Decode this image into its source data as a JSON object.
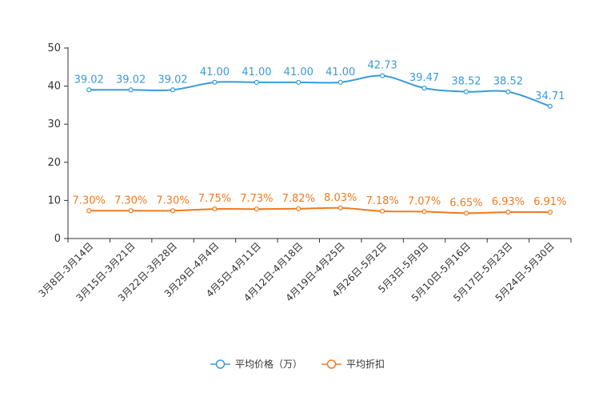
{
  "chart_data": {
    "type": "line",
    "categories": [
      "3月8日-3月14日",
      "3月15日-3月21日",
      "3月22日-3月28日",
      "3月29日-4月4日",
      "4月5日-4月11日",
      "4月12日-4月18日",
      "4月19日-4月25日",
      "4月26日-5月2日",
      "5月3日-5月9日",
      "5月10日-5月16日",
      "5月17日-5月23日",
      "5月24日-5月30日"
    ],
    "series": [
      {
        "name": "平均价格（万）",
        "color": "#3a9ad9",
        "values": [
          39.02,
          39.02,
          39.02,
          41.0,
          41.0,
          41.0,
          41.0,
          42.73,
          39.47,
          38.52,
          38.52,
          34.71
        ],
        "labels": [
          "39.02",
          "39.02",
          "39.02",
          "41.00",
          "41.00",
          "41.00",
          "41.00",
          "42.73",
          "39.47",
          "38.52",
          "38.52",
          "34.71"
        ]
      },
      {
        "name": "平均折扣",
        "color": "#f07a1e",
        "values": [
          7.3,
          7.3,
          7.3,
          7.75,
          7.73,
          7.82,
          8.03,
          7.18,
          7.07,
          6.65,
          6.93,
          6.91
        ],
        "labels": [
          "7.30%",
          "7.30%",
          "7.30%",
          "7.75%",
          "7.73%",
          "7.82%",
          "8.03%",
          "7.18%",
          "7.07%",
          "6.65%",
          "6.93%",
          "6.91%"
        ]
      }
    ],
    "yticks": [
      "0",
      "10",
      "20",
      "30",
      "40",
      "50"
    ],
    "ylim": [
      0,
      50
    ],
    "title": "",
    "xlabel": "",
    "ylabel": "",
    "legend_position": "bottom-center"
  }
}
